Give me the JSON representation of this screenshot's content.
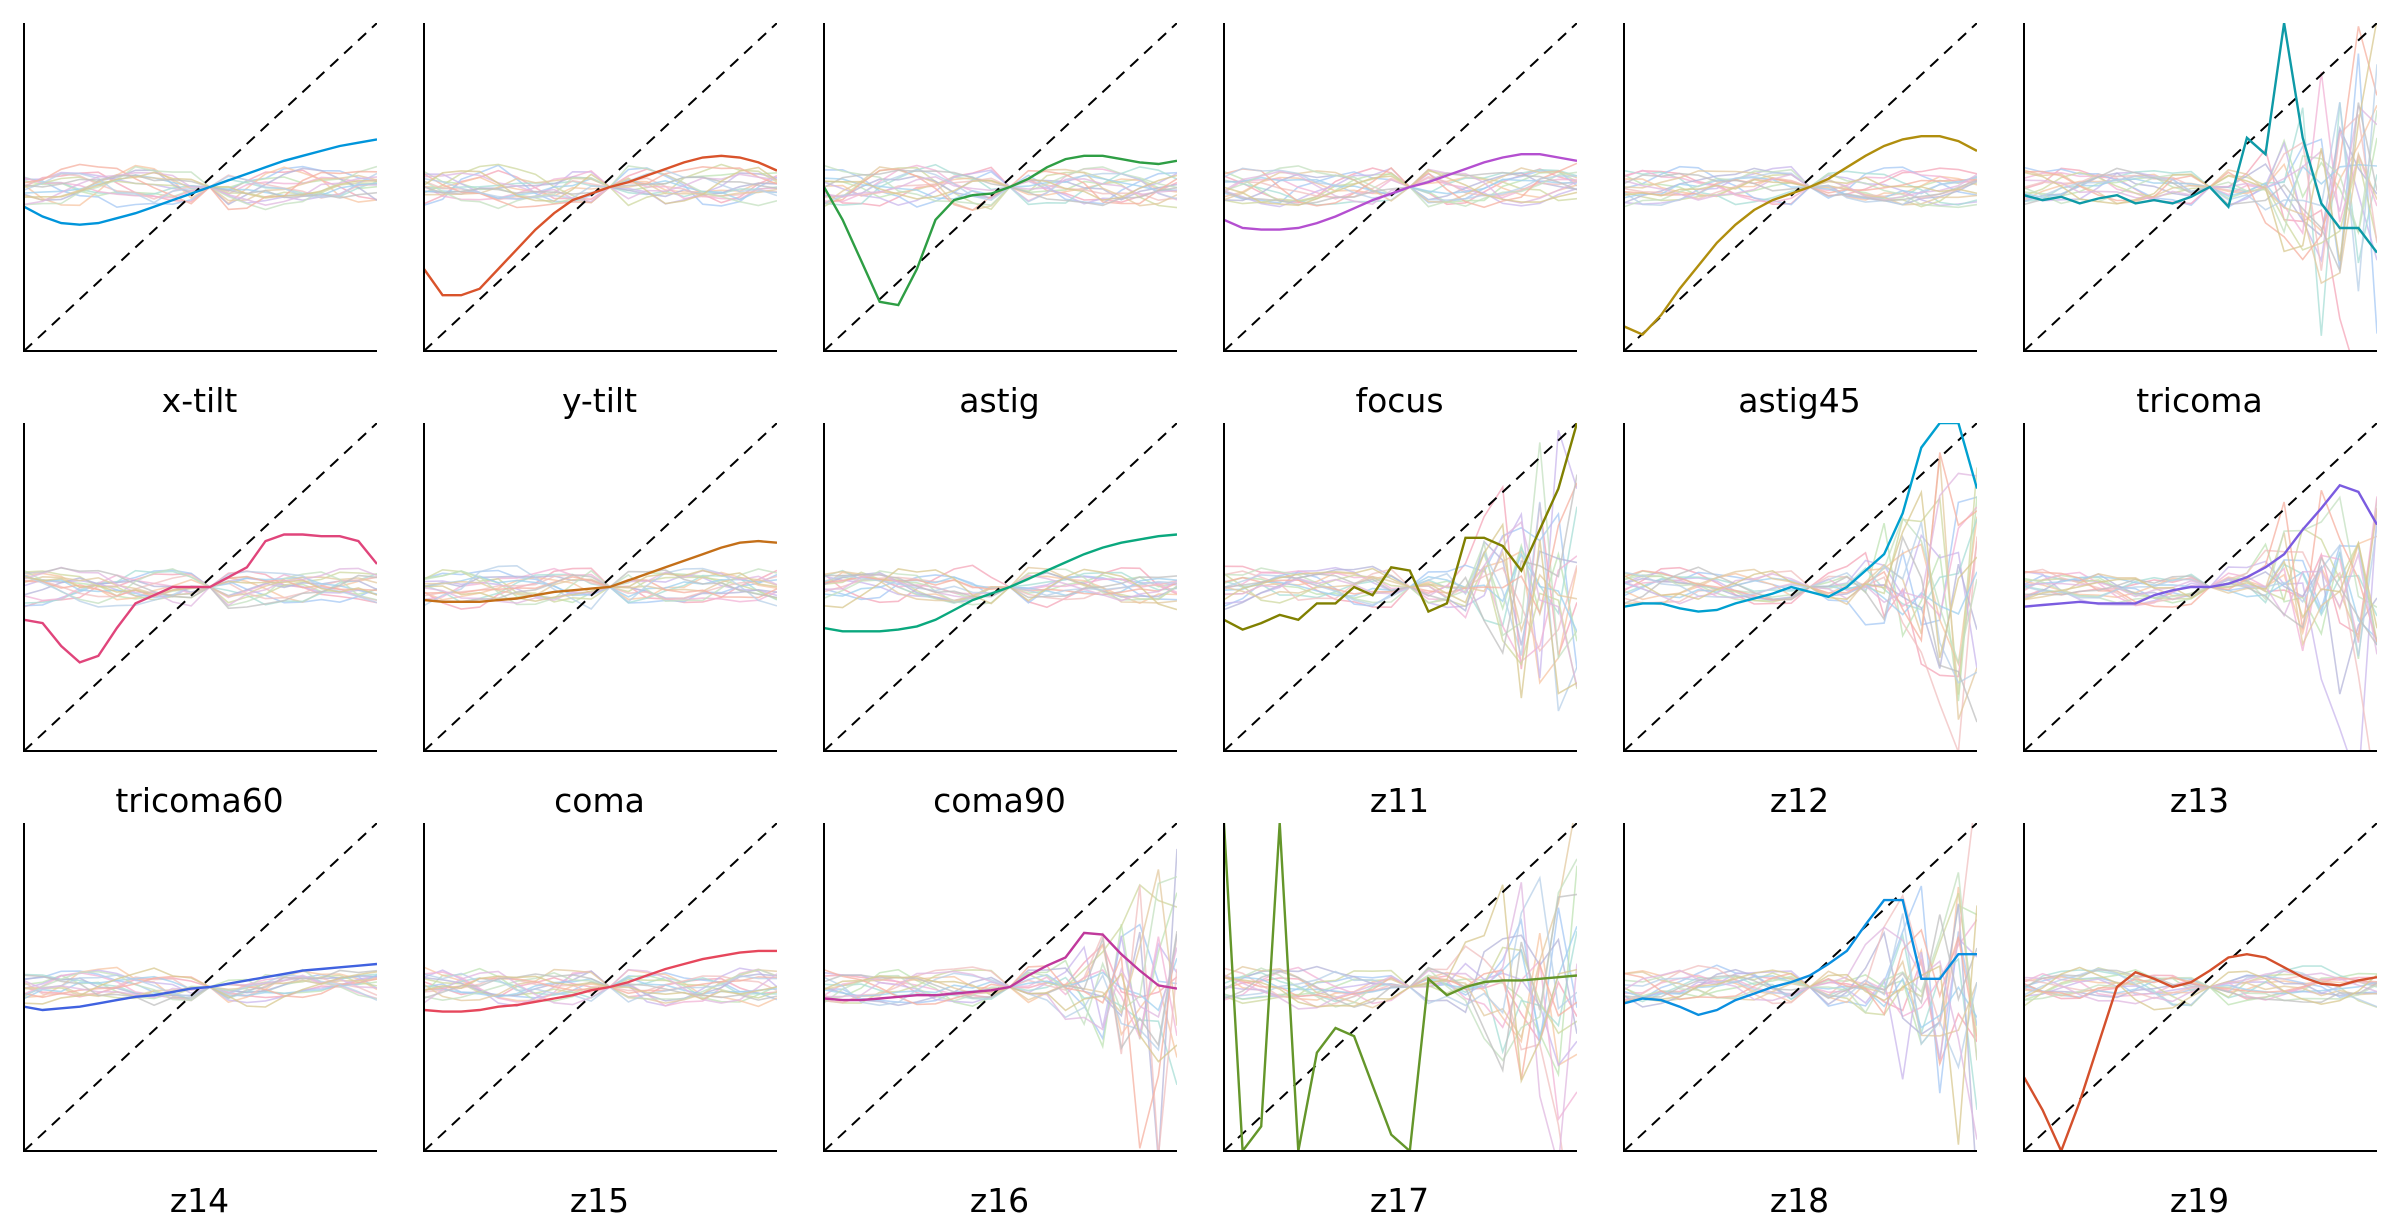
{
  "chart_data": [
    {
      "type": "line",
      "title": "x-tilt",
      "accent_color": "#0095DB",
      "highlight": [
        -0.12,
        -0.18,
        -0.22,
        -0.23,
        -0.22,
        -0.19,
        -0.16,
        -0.12,
        -0.08,
        -0.04,
        0.0,
        0.04,
        0.08,
        0.12,
        0.16,
        0.19,
        0.22,
        0.25,
        0.27,
        0.29
      ]
    },
    {
      "type": "line",
      "title": "y-tilt",
      "accent_color": "#D9532B",
      "highlight": [
        -0.5,
        -0.66,
        -0.66,
        -0.62,
        -0.5,
        -0.38,
        -0.26,
        -0.16,
        -0.08,
        -0.04,
        0.0,
        0.03,
        0.07,
        0.11,
        0.15,
        0.18,
        0.19,
        0.18,
        0.15,
        0.1
      ]
    },
    {
      "type": "line",
      "title": "astig",
      "accent_color": "#2E9E44",
      "highlight": [
        0.0,
        -0.2,
        -0.45,
        -0.7,
        -0.72,
        -0.5,
        -0.2,
        -0.08,
        -0.05,
        -0.04,
        0.0,
        0.05,
        0.12,
        0.17,
        0.19,
        0.19,
        0.17,
        0.15,
        0.14,
        0.16
      ]
    },
    {
      "type": "line",
      "title": "focus",
      "accent_color": "#B44FD0",
      "highlight": [
        -0.2,
        -0.25,
        -0.26,
        -0.26,
        -0.25,
        -0.22,
        -0.18,
        -0.13,
        -0.08,
        -0.04,
        0.0,
        0.03,
        0.07,
        0.11,
        0.15,
        0.18,
        0.2,
        0.2,
        0.18,
        0.16
      ]
    },
    {
      "type": "line",
      "title": "astig45",
      "accent_color": "#B08E0D",
      "highlight": [
        -0.85,
        -0.9,
        -0.78,
        -0.62,
        -0.48,
        -0.34,
        -0.23,
        -0.14,
        -0.08,
        -0.04,
        0.0,
        0.05,
        0.12,
        0.19,
        0.25,
        0.29,
        0.31,
        0.31,
        0.28,
        0.22
      ]
    },
    {
      "type": "line",
      "title": "tricoma",
      "accent_color": "#0E9AA7",
      "highlight": [
        -0.05,
        -0.08,
        -0.06,
        -0.1,
        -0.07,
        -0.05,
        -0.1,
        -0.08,
        -0.1,
        -0.06,
        0.0,
        -0.12,
        0.3,
        0.2,
        1.0,
        0.3,
        -0.1,
        -0.25,
        -0.25,
        -0.4
      ]
    },
    {
      "type": "line",
      "title": "tricoma60",
      "accent_color": "#E0457B",
      "highlight": [
        -0.2,
        -0.22,
        -0.36,
        -0.46,
        -0.42,
        -0.25,
        -0.1,
        -0.05,
        0.0,
        0.0,
        0.0,
        0.06,
        0.12,
        0.28,
        0.32,
        0.32,
        0.31,
        0.31,
        0.28,
        0.14
      ]
    },
    {
      "type": "line",
      "title": "coma",
      "accent_color": "#C46F18",
      "highlight": [
        -0.08,
        -0.09,
        -0.09,
        -0.09,
        -0.08,
        -0.07,
        -0.05,
        -0.03,
        -0.02,
        -0.01,
        0.0,
        0.04,
        0.08,
        0.12,
        0.16,
        0.2,
        0.24,
        0.27,
        0.28,
        0.27
      ]
    },
    {
      "type": "line",
      "title": "coma90",
      "accent_color": "#0AA87E",
      "highlight": [
        -0.25,
        -0.27,
        -0.27,
        -0.27,
        -0.26,
        -0.24,
        -0.2,
        -0.14,
        -0.08,
        -0.04,
        0.0,
        0.05,
        0.1,
        0.15,
        0.2,
        0.24,
        0.27,
        0.29,
        0.31,
        0.32
      ]
    },
    {
      "type": "line",
      "title": "z11",
      "accent_color": "#808000",
      "highlight": [
        -0.2,
        -0.26,
        -0.22,
        -0.17,
        -0.2,
        -0.1,
        -0.1,
        0.0,
        -0.05,
        0.12,
        0.1,
        -0.15,
        -0.1,
        0.3,
        0.3,
        0.25,
        0.1,
        0.35,
        0.6,
        1.0
      ]
    },
    {
      "type": "line",
      "title": "z12",
      "accent_color": "#00A0D0",
      "highlight": [
        -0.12,
        -0.1,
        -0.1,
        -0.13,
        -0.15,
        -0.14,
        -0.1,
        -0.07,
        -0.04,
        0.0,
        -0.03,
        -0.06,
        0.0,
        0.1,
        0.2,
        0.45,
        0.85,
        1.0,
        1.0,
        0.6
      ]
    },
    {
      "type": "line",
      "title": "z13",
      "accent_color": "#7B5CE0",
      "highlight": [
        -0.12,
        -0.11,
        -0.1,
        -0.09,
        -0.1,
        -0.1,
        -0.1,
        -0.05,
        -0.02,
        0.0,
        0.0,
        0.02,
        0.06,
        0.12,
        0.2,
        0.35,
        0.48,
        0.62,
        0.58,
        0.38
      ]
    },
    {
      "type": "line",
      "title": "z14",
      "accent_color": "#4062E0",
      "highlight": [
        -0.12,
        -0.14,
        -0.13,
        -0.12,
        -0.1,
        -0.08,
        -0.06,
        -0.05,
        -0.03,
        -0.01,
        0.0,
        0.02,
        0.04,
        0.06,
        0.08,
        0.1,
        0.11,
        0.12,
        0.13,
        0.14
      ]
    },
    {
      "type": "line",
      "title": "z15",
      "accent_color": "#E6475C",
      "highlight": [
        -0.14,
        -0.15,
        -0.15,
        -0.14,
        -0.12,
        -0.11,
        -0.09,
        -0.07,
        -0.05,
        -0.02,
        0.0,
        0.03,
        0.07,
        0.11,
        0.14,
        0.17,
        0.19,
        0.21,
        0.22,
        0.22
      ]
    },
    {
      "type": "line",
      "title": "z16",
      "accent_color": "#C0399C",
      "highlight": [
        -0.07,
        -0.08,
        -0.08,
        -0.07,
        -0.06,
        -0.05,
        -0.05,
        -0.04,
        -0.03,
        -0.02,
        0.0,
        0.07,
        0.13,
        0.18,
        0.33,
        0.32,
        0.2,
        0.1,
        0.01,
        -0.01
      ]
    },
    {
      "type": "line",
      "title": "z17",
      "accent_color": "#64962A",
      "highlight": [
        1.0,
        -1.0,
        -0.85,
        1.0,
        -1.0,
        -0.4,
        -0.25,
        -0.3,
        -0.6,
        -0.9,
        -1.0,
        0.05,
        -0.05,
        0.0,
        0.03,
        0.04,
        0.04,
        0.05,
        0.06,
        0.07
      ]
    },
    {
      "type": "line",
      "title": "z18",
      "accent_color": "#0A8FE0",
      "highlight": [
        -0.1,
        -0.07,
        -0.08,
        -0.12,
        -0.17,
        -0.14,
        -0.08,
        -0.04,
        0.0,
        0.03,
        0.07,
        0.14,
        0.22,
        0.38,
        0.53,
        0.53,
        0.05,
        0.05,
        0.2,
        0.2
      ]
    },
    {
      "type": "line",
      "title": "z19",
      "accent_color": "#D4502C",
      "highlight": [
        -0.55,
        -0.75,
        -1.0,
        -0.7,
        -0.35,
        0.0,
        0.09,
        0.05,
        0.0,
        0.03,
        0.1,
        0.18,
        0.2,
        0.18,
        0.12,
        0.06,
        0.02,
        0.01,
        0.04,
        0.06
      ]
    }
  ]
}
